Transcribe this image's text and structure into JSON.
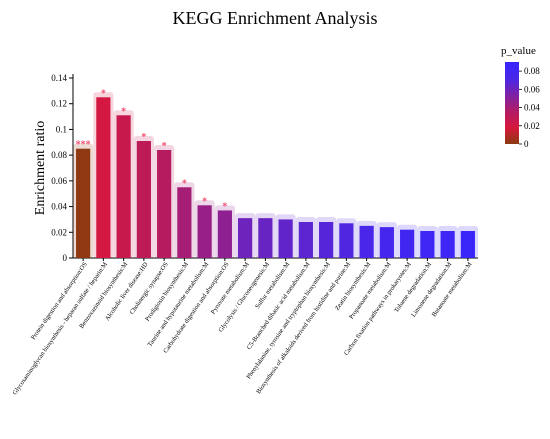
{
  "chart_data": {
    "type": "bar",
    "title": "KEGG Enrichment Analysis",
    "xlabel": "",
    "ylabel": "Enrichment ratio",
    "ylim": [
      0,
      0.14
    ],
    "yticks": [
      0,
      0.02,
      0.04,
      0.06,
      0.08,
      0.1,
      0.12,
      0.14
    ],
    "ytick_labels": [
      "0",
      "0.02",
      "0.04",
      "0.06",
      "0.08",
      "0.1",
      "0.12",
      "0.14"
    ],
    "grid": false,
    "legend": {
      "title": "p_value",
      "placement": "right",
      "range": [
        0,
        0.09
      ],
      "ticks": [
        0,
        0.02,
        0.04,
        0.06,
        0.08
      ],
      "tick_labels": [
        "0",
        "0.02",
        "0.04",
        "0.06",
        "0.08"
      ],
      "colors": [
        "#8b3a10",
        "#d8173c",
        "#b01c66",
        "#7e22a6",
        "#4a26e8",
        "#3526ff"
      ]
    },
    "categories": [
      "Protein digestion and absorption:OS",
      "Glycosaminoglycan biosynthesis - heparan sulfate / heparin:M",
      "Benzoxazinoid biosynthesis:M",
      "Alcoholic liver disease:HD",
      "Cholinergic synapse:OS",
      "Prodigiosin biosynthesis:M",
      "Taurine and hypotaurine metabolism:M",
      "Carbohydrate digestion and absorption:OS",
      "Pyruvate metabolism:M",
      "Glycolysis / Gluconeogenesis:M",
      "Sulfur metabolism:M",
      "C5-Branched dibasic acid metabolism:M",
      "Phenylalanine, tyrosine and tryptophan biosynthesis:M",
      "Biosynthesis of alkaloids derived from histidine and purine:M",
      "Zeatin biosynthesis:M",
      "Propanoate metabolism:M",
      "Carbon fixation pathways in prokaryotes:M",
      "Toluene degradation:M",
      "Limonene degradation:M",
      "Butanoate metabolism:M"
    ],
    "values": [
      0.085,
      0.125,
      0.111,
      0.091,
      0.084,
      0.055,
      0.041,
      0.037,
      0.031,
      0.031,
      0.03,
      0.028,
      0.028,
      0.027,
      0.025,
      0.024,
      0.022,
      0.021,
      0.021,
      0.021
    ],
    "p_values": [
      0.001,
      0.02,
      0.025,
      0.03,
      0.033,
      0.04,
      0.045,
      0.048,
      0.06,
      0.062,
      0.064,
      0.066,
      0.068,
      0.07,
      0.073,
      0.076,
      0.08,
      0.082,
      0.083,
      0.085
    ],
    "significance": [
      "***",
      "*",
      "*",
      "*",
      "*",
      "*",
      "*",
      "*",
      "",
      "",
      "",
      "",
      "",
      "",
      "",
      "",
      "",
      "",
      "",
      ""
    ]
  }
}
